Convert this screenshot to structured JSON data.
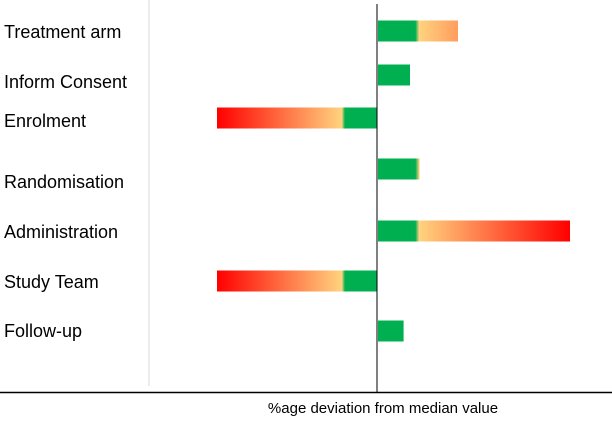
{
  "chart_data": {
    "type": "bar",
    "orientation": "horizontal",
    "title": "",
    "xlabel": "%age deviation from median value",
    "ylabel": "",
    "categories": [
      "Treatment arm",
      "Inform Consent",
      "Enrolment",
      "Randomisation",
      "Administration",
      "Study Team",
      "Follow-up"
    ],
    "values": [
      25,
      10,
      -50,
      13,
      60,
      -50,
      8
    ],
    "xlim": [
      -71,
      73
    ],
    "grid": false,
    "legend": "none",
    "colors": {
      "low": "#00b050",
      "mid": "#ffd37f",
      "high": "#ff0000",
      "axis": "#000000",
      "divider": "#d9d9d9"
    }
  }
}
